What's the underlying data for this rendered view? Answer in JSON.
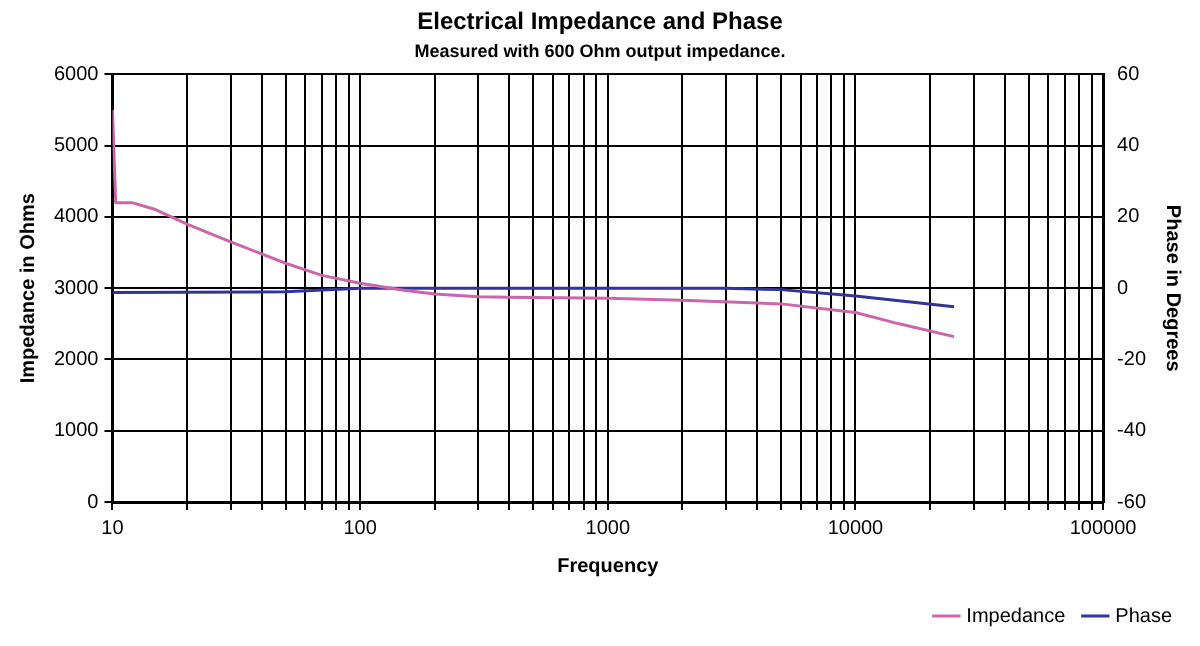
{
  "chart_data": {
    "type": "line",
    "title": "Electrical Impedance and Phase",
    "subtitle": "Measured with 600 Ohm output impedance.",
    "xlabel": "Frequency",
    "ylabel": "Impedance in Ohms",
    "y2label": "Phase in Degrees",
    "log": "x",
    "grid": true,
    "legend": "bottom",
    "marker": "none",
    "line_style": "solid",
    "xlim": [
      10,
      100000
    ],
    "xticks": [
      10,
      {
        "value": 20,
        "label": null
      },
      {
        "value": 30,
        "label": null
      },
      {
        "value": 40,
        "label": null
      },
      {
        "value": 50,
        "label": null
      },
      {
        "value": 60,
        "label": null
      },
      {
        "value": 70,
        "label": null
      },
      {
        "value": 80,
        "label": null
      },
      {
        "value": 90,
        "label": null
      },
      100,
      {
        "value": 200,
        "label": null
      },
      {
        "value": 300,
        "label": null
      },
      {
        "value": 400,
        "label": null
      },
      {
        "value": 500,
        "label": null
      },
      {
        "value": 600,
        "label": null
      },
      {
        "value": 700,
        "label": null
      },
      {
        "value": 800,
        "label": null
      },
      {
        "value": 900,
        "label": null
      },
      1000,
      {
        "value": 2000,
        "label": null
      },
      {
        "value": 3000,
        "label": null
      },
      {
        "value": 4000,
        "label": null
      },
      {
        "value": 5000,
        "label": null
      },
      {
        "value": 6000,
        "label": null
      },
      {
        "value": 7000,
        "label": null
      },
      {
        "value": 8000,
        "label": null
      },
      {
        "value": 9000,
        "label": null
      },
      10000,
      {
        "value": 20000,
        "label": null
      },
      {
        "value": 30000,
        "label": null
      },
      {
        "value": 40000,
        "label": null
      },
      {
        "value": 50000,
        "label": null
      },
      {
        "value": 60000,
        "label": null
      },
      {
        "value": 70000,
        "label": null
      },
      {
        "value": 80000,
        "label": null
      },
      {
        "value": 90000,
        "label": null
      },
      100000
    ],
    "ylim": [
      0,
      6000
    ],
    "yticks": [
      0,
      1000,
      2000,
      3000,
      4000,
      5000,
      6000
    ],
    "y2lim": [
      -60,
      60
    ],
    "y2ticks": [
      -60,
      -40,
      -20,
      0,
      20,
      40,
      60
    ],
    "series": [
      {
        "name": "Impedance",
        "color": "#cc66aa",
        "x": [
          10,
          10.3,
          12,
          15,
          20,
          30,
          50,
          70,
          100,
          150,
          200,
          300,
          500,
          1000,
          2000,
          5000,
          10000,
          15000,
          25000
        ],
        "values": [
          5500,
          4200,
          4200,
          4100,
          3900,
          3650,
          3350,
          3180,
          3070,
          2970,
          2920,
          2880,
          2870,
          2860,
          2830,
          2780,
          2660,
          2500,
          2320
        ]
      },
      {
        "name": "Phase",
        "color": "#333399",
        "axis": "y2",
        "x": [
          10,
          50,
          100,
          1000,
          3000,
          5000,
          10000,
          15000,
          25000
        ],
        "values": [
          -1.2,
          -1,
          0,
          0,
          0,
          -0.4,
          -2.2,
          -3.5,
          -5.2
        ]
      }
    ]
  }
}
